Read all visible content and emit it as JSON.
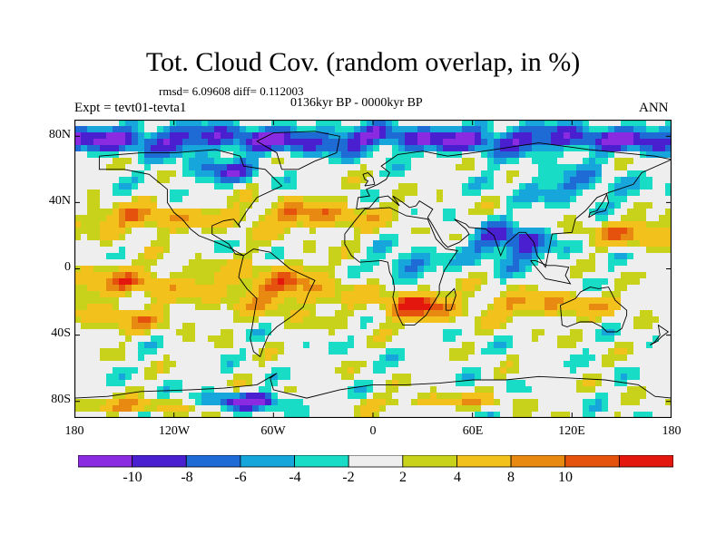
{
  "plot": {
    "title": "Tot. Cloud Cov. (random overlap, in %)",
    "stats": "rmsd= 6.09608  diff= 0.112003",
    "period": "0136kyr BP - 0000kyr BP",
    "experiment": "Expt = tevt01-tevta1",
    "season": "ANN"
  },
  "map": {
    "projection": "cylindrical equidistant",
    "lon_range": [
      -180,
      180
    ],
    "lat_range": [
      -90,
      90
    ],
    "lat_ticks": [
      "80N",
      "40N",
      "0",
      "40S",
      "80S"
    ],
    "lon_ticks": [
      "180",
      "120W",
      "60W",
      "0",
      "60E",
      "120E",
      "180"
    ],
    "coastlines": true
  },
  "colorbar": {
    "labels": [
      "-10",
      "-8",
      "-6",
      "-4",
      "-2",
      "2",
      "4",
      "8",
      "10"
    ],
    "colors": [
      "#8a2be2",
      "#4a1fd0",
      "#1e6bd6",
      "#16a6dc",
      "#18dcc6",
      "#eeeeee",
      "#c9d21a",
      "#f3c11c",
      "#e88a12",
      "#e4520d",
      "#e3170e"
    ]
  },
  "field": {
    "description": "difference in total cloud cover, %",
    "bands": [
      {
        "lat": 75,
        "class": 0,
        "note": "Arctic negative"
      },
      {
        "lat": 35,
        "class": 9,
        "note": "subtropical north Atlantic/Pacific positive"
      },
      {
        "lat": 0,
        "class": 9,
        "note": "equatorial Pacific positive"
      },
      {
        "lat": -20,
        "class": 10,
        "note": "southern Africa positive"
      },
      {
        "lat": -80,
        "class": 1,
        "note": "Antarctic mixed"
      }
    ]
  }
}
